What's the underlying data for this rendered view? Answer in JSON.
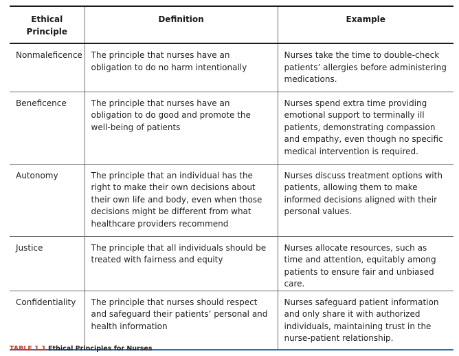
{
  "table": {
    "headers": {
      "principle": "Ethical\nPrinciple",
      "definition": "Definition",
      "example": "Example"
    },
    "rows": [
      {
        "principle": "Nonmaleficence",
        "definition": "The principle that nurses have an obligation to do no harm intentionally",
        "example": "Nurses take the time to double-check patients’ allergies before administering medications."
      },
      {
        "principle": "Beneficence",
        "definition": "The principle that nurses have an obligation to do good and promote the well-being of patients",
        "example": "Nurses spend extra time providing emotional support to terminally ill patients, demonstrating compassion and empathy, even though no specific medical intervention is required."
      },
      {
        "principle": "Autonomy",
        "definition": "The principle that an individual has the right to make their own decisions about their own life and body, even when those decisions might be different from what healthcare providers recommend",
        "example": "Nurses discuss treatment options with patients, allowing them to make informed decisions aligned with their personal values."
      },
      {
        "principle": "Justice",
        "definition": "The principle that all individuals should be treated with fairness and equity",
        "example": "Nurses allocate resources, such as time and attention, equitably among patients to ensure fair and unbiased care."
      },
      {
        "principle": "Confidentiality",
        "definition": "The principle that nurses should respect and safeguard their patients’ personal and health information",
        "example": "Nurses safeguard patient information and only share it with authorized individuals, maintaining trust in the nurse-patient relationship."
      }
    ]
  },
  "caption": {
    "number": "TABLE 1.1",
    "title": "Ethical Principles for Nurses"
  },
  "colors": {
    "caption_number": "#c0392b",
    "bottom_rule": "#2a6fb5"
  }
}
